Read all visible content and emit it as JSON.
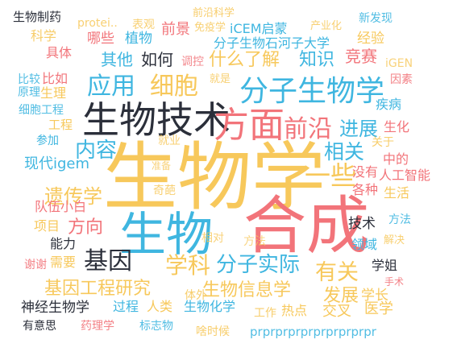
{
  "palette": {
    "yellow": "#F7C85B",
    "red": "#F2747A",
    "blue": "#3FB6E0",
    "dark": "#2B2F3A"
  },
  "words": [
    {
      "text": "生物学",
      "color": "yellow"
    },
    {
      "text": "合成",
      "color": "red"
    },
    {
      "text": "生物",
      "color": "blue"
    },
    {
      "text": "生物技术",
      "color": "dark"
    },
    {
      "text": "方面",
      "color": "red"
    },
    {
      "text": "分子生物学",
      "color": "blue"
    },
    {
      "text": "前沿",
      "color": "red"
    },
    {
      "text": "应用",
      "color": "blue"
    },
    {
      "text": "细胞",
      "color": "yellow"
    },
    {
      "text": "基因",
      "color": "dark"
    },
    {
      "text": "学科",
      "color": "yellow"
    },
    {
      "text": "分子实际",
      "color": "blue"
    },
    {
      "text": "有关",
      "color": "yellow"
    },
    {
      "text": "一些",
      "color": "yellow"
    },
    {
      "text": "内容",
      "color": "blue"
    },
    {
      "text": "相关",
      "color": "blue"
    },
    {
      "text": "进展",
      "color": "blue"
    },
    {
      "text": "遗传学",
      "color": "yellow"
    },
    {
      "text": "方向",
      "color": "red"
    },
    {
      "text": "基因工程研究",
      "color": "yellow"
    },
    {
      "text": "生物信息学",
      "color": "yellow"
    },
    {
      "text": "发展",
      "color": "yellow"
    },
    {
      "text": "什么了解",
      "color": "yellow"
    },
    {
      "text": "知识",
      "color": "blue"
    },
    {
      "text": "竞赛",
      "color": "red"
    },
    {
      "text": "其他",
      "color": "blue"
    },
    {
      "text": "如何",
      "color": "dark"
    },
    {
      "text": "生物制药",
      "color": "dark"
    },
    {
      "text": "protei..",
      "color": "yellow"
    },
    {
      "text": "表观",
      "color": "yellow"
    },
    {
      "text": "前沿科学",
      "color": "yellow"
    },
    {
      "text": "产业化",
      "color": "yellow"
    },
    {
      "text": "新发现",
      "color": "blue"
    },
    {
      "text": "科学",
      "color": "yellow"
    },
    {
      "text": "哪些",
      "color": "red"
    },
    {
      "text": "植物",
      "color": "blue"
    },
    {
      "text": "前景",
      "color": "red"
    },
    {
      "text": "免疫学",
      "color": "yellow"
    },
    {
      "text": "iCEM启蒙",
      "color": "blue"
    },
    {
      "text": "分子生物石河子大学",
      "color": "blue"
    },
    {
      "text": "经验",
      "color": "yellow"
    },
    {
      "text": "iGEN",
      "color": "yellow"
    },
    {
      "text": "具体",
      "color": "red"
    },
    {
      "text": "调控",
      "color": "red"
    },
    {
      "text": "比较",
      "color": "blue"
    },
    {
      "text": "比如",
      "color": "red"
    },
    {
      "text": "就是",
      "color": "yellow"
    },
    {
      "text": "因素",
      "color": "red"
    },
    {
      "text": "原理",
      "color": "blue"
    },
    {
      "text": "生理",
      "color": "yellow"
    },
    {
      "text": "细胞工程",
      "color": "blue"
    },
    {
      "text": "疾病",
      "color": "blue"
    },
    {
      "text": "工程",
      "color": "yellow"
    },
    {
      "text": "生化",
      "color": "red"
    },
    {
      "text": "参加",
      "color": "blue"
    },
    {
      "text": "就业",
      "color": "yellow"
    },
    {
      "text": "关于",
      "color": "yellow"
    },
    {
      "text": "现代igem",
      "color": "blue"
    },
    {
      "text": "准备",
      "color": "yellow"
    },
    {
      "text": "没有",
      "color": "red"
    },
    {
      "text": "中的",
      "color": "red"
    },
    {
      "text": "人工智能",
      "color": "red"
    },
    {
      "text": "奇葩",
      "color": "yellow"
    },
    {
      "text": "各种",
      "color": "red"
    },
    {
      "text": "生活",
      "color": "yellow"
    },
    {
      "text": "队伍小白",
      "color": "red"
    },
    {
      "text": "技术",
      "color": "dark"
    },
    {
      "text": "项目",
      "color": "yellow"
    },
    {
      "text": "方法",
      "color": "blue"
    },
    {
      "text": "能力",
      "color": "dark"
    },
    {
      "text": "领域",
      "color": "blue"
    },
    {
      "text": "相对",
      "color": "yellow"
    },
    {
      "text": "方法",
      "color": "yellow"
    },
    {
      "text": "解决",
      "color": "yellow"
    },
    {
      "text": "谢谢",
      "color": "red"
    },
    {
      "text": "需要",
      "color": "yellow"
    },
    {
      "text": "学姐",
      "color": "dark"
    },
    {
      "text": "手术",
      "color": "red"
    },
    {
      "text": "体外",
      "color": "yellow"
    },
    {
      "text": "学长",
      "color": "yellow"
    },
    {
      "text": "神经生物学",
      "color": "dark"
    },
    {
      "text": "过程",
      "color": "blue"
    },
    {
      "text": "人类",
      "color": "yellow"
    },
    {
      "text": "生物化学",
      "color": "blue"
    },
    {
      "text": "工作",
      "color": "yellow"
    },
    {
      "text": "热点",
      "color": "yellow"
    },
    {
      "text": "交叉",
      "color": "yellow"
    },
    {
      "text": "医学",
      "color": "yellow"
    },
    {
      "text": "有意思",
      "color": "dark"
    },
    {
      "text": "药理学",
      "color": "red"
    },
    {
      "text": "标志物",
      "color": "blue"
    },
    {
      "text": "啥时候",
      "color": "yellow"
    },
    {
      "text": "prprprprprprprprprpr",
      "color": "blue"
    }
  ]
}
